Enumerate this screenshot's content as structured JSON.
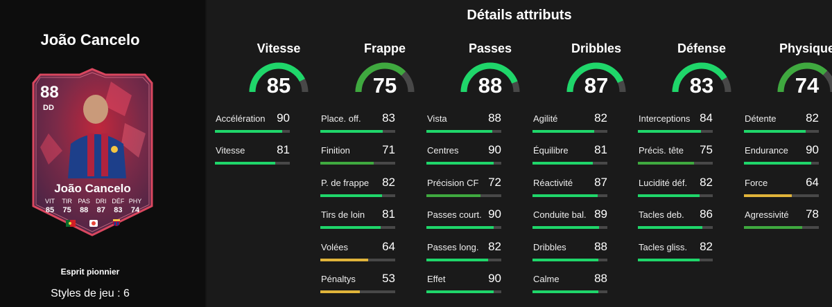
{
  "player": {
    "name": "João Cancelo",
    "card": {
      "rating": "88",
      "position": "DD",
      "name": "João Cancelo",
      "stat_labels": [
        "VIT",
        "TIR",
        "PAS",
        "DRI",
        "DÉF",
        "PHY"
      ],
      "stat_values": [
        "85",
        "75",
        "88",
        "87",
        "83",
        "74"
      ]
    },
    "chemistry_style": "Esprit pionnier",
    "playstyles": "Styles de jeu : 6"
  },
  "details": {
    "title": "Détails attributs",
    "categories": [
      {
        "title": "Vitesse",
        "value": 85,
        "attributes": [
          {
            "name": "Accélération",
            "value": 90
          },
          {
            "name": "Vitesse",
            "value": 81
          }
        ]
      },
      {
        "title": "Frappe",
        "value": 75,
        "attributes": [
          {
            "name": "Place. off.",
            "value": 83
          },
          {
            "name": "Finition",
            "value": 71
          },
          {
            "name": "P. de frappe",
            "value": 82
          },
          {
            "name": "Tirs de loin",
            "value": 81
          },
          {
            "name": "Volées",
            "value": 64
          },
          {
            "name": "Pénaltys",
            "value": 53
          }
        ]
      },
      {
        "title": "Passes",
        "value": 88,
        "attributes": [
          {
            "name": "Vista",
            "value": 88
          },
          {
            "name": "Centres",
            "value": 90
          },
          {
            "name": "Précision CF",
            "value": 72
          },
          {
            "name": "Passes court.",
            "value": 90
          },
          {
            "name": "Passes long.",
            "value": 82
          },
          {
            "name": "Effet",
            "value": 90
          }
        ]
      },
      {
        "title": "Dribbles",
        "value": 87,
        "attributes": [
          {
            "name": "Agilité",
            "value": 82
          },
          {
            "name": "Équilibre",
            "value": 81
          },
          {
            "name": "Réactivité",
            "value": 87
          },
          {
            "name": "Conduite bal.",
            "value": 89
          },
          {
            "name": "Dribbles",
            "value": 88
          },
          {
            "name": "Calme",
            "value": 88
          }
        ]
      },
      {
        "title": "Défense",
        "value": 83,
        "attributes": [
          {
            "name": "Interceptions",
            "value": 84
          },
          {
            "name": "Précis. tête",
            "value": 75
          },
          {
            "name": "Lucidité déf.",
            "value": 82
          },
          {
            "name": "Tacles deb.",
            "value": 86
          },
          {
            "name": "Tacles gliss.",
            "value": 82
          }
        ]
      },
      {
        "title": "Physique",
        "value": 74,
        "attributes": [
          {
            "name": "Détente",
            "value": 82
          },
          {
            "name": "Endurance",
            "value": 90
          },
          {
            "name": "Force",
            "value": 64
          },
          {
            "name": "Agressivité",
            "value": 78
          }
        ]
      }
    ]
  },
  "colors": {
    "high": "#1fd66a",
    "mid": "#3fa93f",
    "low": "#e0b43a",
    "track": "#484848",
    "card_primary": "#6e2838",
    "card_accent": "#d0334a"
  }
}
